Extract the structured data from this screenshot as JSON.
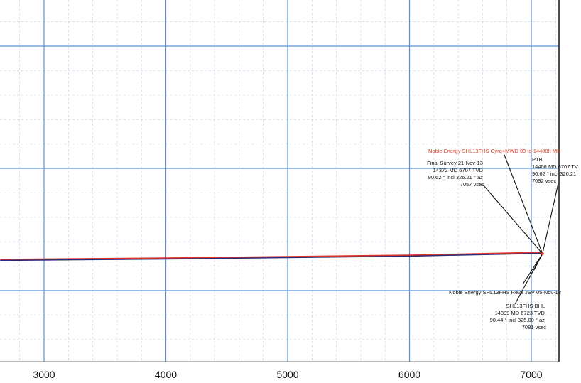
{
  "chart_data": {
    "type": "line",
    "title": "",
    "xlabel": "",
    "ylabel": "",
    "grid": true,
    "xlim": [
      2640,
      7250
    ],
    "x_ticks": [
      3000,
      4000,
      5000,
      6000,
      7000
    ],
    "x_tick_labels": [
      "3000",
      "4000",
      "5000",
      "6000",
      "7000"
    ],
    "series": [
      {
        "color": "#2a2a78",
        "points": [
          [
            2640,
            366
          ],
          [
            4000,
            364
          ],
          [
            5000,
            362
          ],
          [
            6000,
            360
          ],
          [
            7092,
            356
          ]
        ]
      },
      {
        "color": "#d9342b",
        "points": [
          [
            2640,
            365
          ],
          [
            4000,
            363
          ],
          [
            5000,
            361
          ],
          [
            6000,
            359
          ],
          [
            7092,
            355
          ]
        ]
      }
    ],
    "target_point": {
      "x": 7092
    },
    "annotations": [
      {
        "color": "#e0452a",
        "lines": [
          "Noble Energy SHL13FHS Gyro+MWD 08 to 14408ft MD"
        ]
      },
      {
        "color": "#111111",
        "lines": [
          "Final Survey 21-Nov-13",
          "14372 MD 6707 TVD",
          "90.62 ° incl 326.21 ° az",
          "7057 vsec"
        ]
      },
      {
        "color": "#111111",
        "lines": [
          "PTB",
          "14408 MD 6707 TV",
          "90.62 ° incl 326.21",
          "7092 vsec"
        ]
      },
      {
        "color": "#111111",
        "lines": [
          "Noble Energy SHL13FHS Rev3 JSV 05-Nov-13"
        ]
      },
      {
        "color": "#111111",
        "lines": [
          "SHL13FHS BHL",
          "14399 MD 6723 TVD",
          "90.44 ° incl 325.00 ° az",
          "7081 vsec"
        ]
      }
    ]
  }
}
